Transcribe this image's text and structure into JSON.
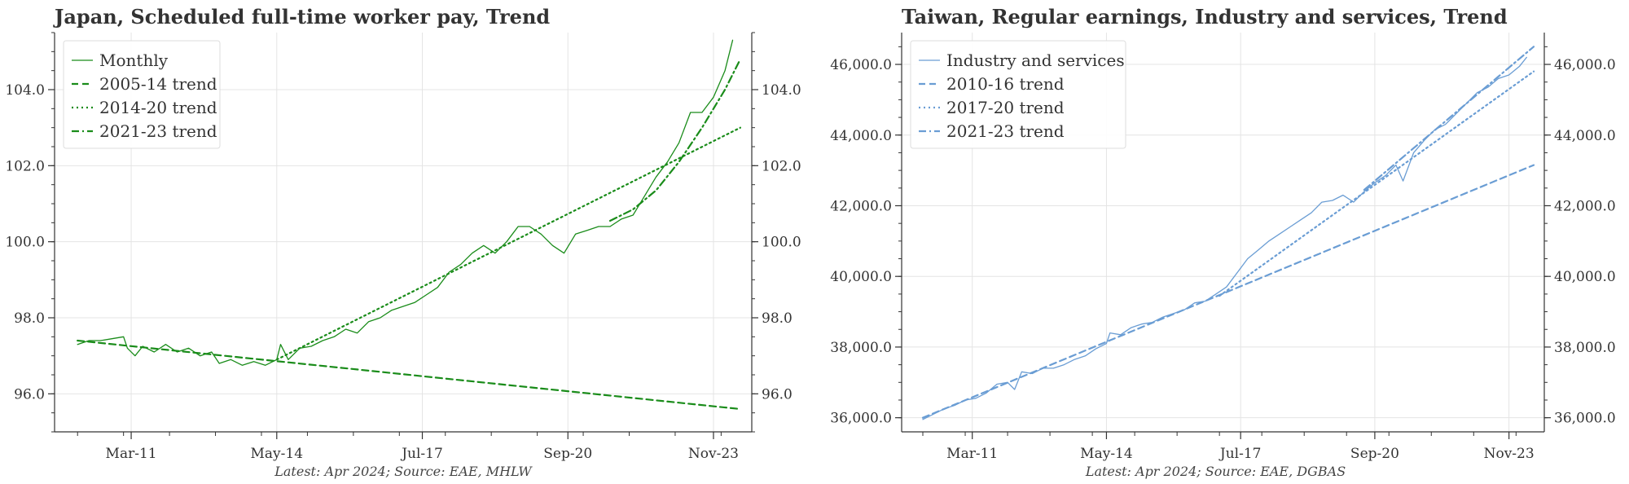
{
  "chart_data": [
    {
      "type": "line",
      "title": "Japan, Scheduled full-time worker pay, Trend",
      "caption": "Latest: Apr 2024; Source: EAE, MHLW",
      "color": "#1a8c1a",
      "xlabel": "",
      "ylabel": "",
      "x_range": [
        "2009-07",
        "2024-09"
      ],
      "ylim": [
        95.0,
        105.5
      ],
      "x_ticks": [
        "Mar-11",
        "May-14",
        "Jul-17",
        "Sep-20",
        "Nov-23"
      ],
      "y_ticks": [
        "96.0",
        "98.0",
        "100.0",
        "102.0",
        "104.0"
      ],
      "y_tick_values": [
        96,
        98,
        100,
        102,
        104
      ],
      "y_axis_both_sides": true,
      "grid": true,
      "legend_position": "top-left",
      "series": [
        {
          "name": "Monthly",
          "style": "solid",
          "points": [
            [
              "2010-01",
              97.3
            ],
            [
              "2010-04",
              97.4
            ],
            [
              "2010-07",
              97.4
            ],
            [
              "2010-10",
              97.45
            ],
            [
              "2011-01",
              97.5
            ],
            [
              "2011-02",
              97.2
            ],
            [
              "2011-04",
              97.0
            ],
            [
              "2011-06",
              97.25
            ],
            [
              "2011-09",
              97.1
            ],
            [
              "2011-12",
              97.3
            ],
            [
              "2012-03",
              97.1
            ],
            [
              "2012-06",
              97.2
            ],
            [
              "2012-09",
              97.0
            ],
            [
              "2012-12",
              97.1
            ],
            [
              "2013-02",
              96.8
            ],
            [
              "2013-05",
              96.9
            ],
            [
              "2013-08",
              96.75
            ],
            [
              "2013-11",
              96.85
            ],
            [
              "2014-02",
              96.75
            ],
            [
              "2014-05",
              96.9
            ],
            [
              "2014-06",
              97.3
            ],
            [
              "2014-08",
              96.9
            ],
            [
              "2014-11",
              97.2
            ],
            [
              "2015-02",
              97.25
            ],
            [
              "2015-05",
              97.4
            ],
            [
              "2015-08",
              97.5
            ],
            [
              "2015-11",
              97.7
            ],
            [
              "2016-02",
              97.6
            ],
            [
              "2016-05",
              97.9
            ],
            [
              "2016-08",
              98.0
            ],
            [
              "2016-11",
              98.2
            ],
            [
              "2017-02",
              98.3
            ],
            [
              "2017-05",
              98.4
            ],
            [
              "2017-08",
              98.6
            ],
            [
              "2017-11",
              98.8
            ],
            [
              "2018-02",
              99.2
            ],
            [
              "2018-05",
              99.4
            ],
            [
              "2018-08",
              99.7
            ],
            [
              "2018-11",
              99.9
            ],
            [
              "2019-02",
              99.7
            ],
            [
              "2019-05",
              100.0
            ],
            [
              "2019-08",
              100.4
            ],
            [
              "2019-11",
              100.4
            ],
            [
              "2020-02",
              100.2
            ],
            [
              "2020-05",
              99.9
            ],
            [
              "2020-08",
              99.7
            ],
            [
              "2020-11",
              100.2
            ],
            [
              "2021-02",
              100.3
            ],
            [
              "2021-05",
              100.4
            ],
            [
              "2021-08",
              100.4
            ],
            [
              "2021-11",
              100.6
            ],
            [
              "2022-02",
              100.7
            ],
            [
              "2022-05",
              101.2
            ],
            [
              "2022-08",
              101.7
            ],
            [
              "2022-11",
              102.1
            ],
            [
              "2023-02",
              102.6
            ],
            [
              "2023-05",
              103.4
            ],
            [
              "2023-08",
              103.4
            ],
            [
              "2023-11",
              103.8
            ],
            [
              "2024-02",
              104.5
            ],
            [
              "2024-04",
              105.3
            ]
          ]
        },
        {
          "name": "2005-14 trend",
          "style": "dashed",
          "points": [
            [
              "2010-01",
              97.4
            ],
            [
              "2024-06",
              95.6
            ]
          ]
        },
        {
          "name": "2014-20 trend",
          "style": "dotted",
          "points": [
            [
              "2014-05",
              96.9
            ],
            [
              "2024-06",
              103.0
            ]
          ]
        },
        {
          "name": "2021-23 trend",
          "style": "dashdot",
          "points": [
            [
              "2021-08",
              100.55
            ],
            [
              "2022-02",
              100.85
            ],
            [
              "2022-08",
              101.35
            ],
            [
              "2023-02",
              102.1
            ],
            [
              "2023-08",
              103.0
            ],
            [
              "2024-02",
              104.0
            ],
            [
              "2024-06",
              104.8
            ]
          ]
        }
      ]
    },
    {
      "type": "line",
      "title": "Taiwan, Regular earnings, Industry and services, Trend",
      "caption": "Latest: Apr 2024; Source: EAE, DGBAS",
      "color": "#6a9dd4",
      "xlabel": "",
      "ylabel": "",
      "x_range": [
        "2009-07",
        "2024-09"
      ],
      "ylim": [
        35600,
        46900
      ],
      "x_ticks": [
        "Mar-11",
        "May-14",
        "Jul-17",
        "Sep-20",
        "Nov-23"
      ],
      "y_ticks": [
        "36,000.0",
        "38,000.0",
        "40,000.0",
        "42,000.0",
        "44,000.0",
        "46,000.0"
      ],
      "y_tick_values": [
        36000,
        38000,
        40000,
        42000,
        44000,
        46000
      ],
      "y_axis_both_sides": true,
      "grid": true,
      "legend_position": "top-left",
      "series": [
        {
          "name": "Industry and services",
          "style": "solid",
          "points": [
            [
              "2010-01",
              35950
            ],
            [
              "2010-04",
              36100
            ],
            [
              "2010-07",
              36250
            ],
            [
              "2010-10",
              36350
            ],
            [
              "2011-01",
              36500
            ],
            [
              "2011-04",
              36550
            ],
            [
              "2011-07",
              36700
            ],
            [
              "2011-10",
              36950
            ],
            [
              "2012-01",
              37000
            ],
            [
              "2012-03",
              36800
            ],
            [
              "2012-05",
              37300
            ],
            [
              "2012-08",
              37250
            ],
            [
              "2012-11",
              37400
            ],
            [
              "2013-02",
              37400
            ],
            [
              "2013-05",
              37500
            ],
            [
              "2013-08",
              37650
            ],
            [
              "2013-11",
              37750
            ],
            [
              "2014-02",
              37950
            ],
            [
              "2014-05",
              38100
            ],
            [
              "2014-06",
              38400
            ],
            [
              "2014-09",
              38350
            ],
            [
              "2014-12",
              38550
            ],
            [
              "2015-03",
              38650
            ],
            [
              "2015-06",
              38700
            ],
            [
              "2015-09",
              38850
            ],
            [
              "2015-12",
              38950
            ],
            [
              "2016-03",
              39050
            ],
            [
              "2016-06",
              39250
            ],
            [
              "2016-09",
              39300
            ],
            [
              "2016-12",
              39500
            ],
            [
              "2017-03",
              39700
            ],
            [
              "2017-06",
              40100
            ],
            [
              "2017-09",
              40500
            ],
            [
              "2017-12",
              40750
            ],
            [
              "2018-03",
              41000
            ],
            [
              "2018-06",
              41200
            ],
            [
              "2018-09",
              41400
            ],
            [
              "2018-12",
              41600
            ],
            [
              "2019-03",
              41800
            ],
            [
              "2019-06",
              42100
            ],
            [
              "2019-09",
              42150
            ],
            [
              "2019-12",
              42300
            ],
            [
              "2020-03",
              42100
            ],
            [
              "2020-06",
              42400
            ],
            [
              "2020-09",
              42650
            ],
            [
              "2020-12",
              42850
            ],
            [
              "2021-03",
              43150
            ],
            [
              "2021-05",
              42700
            ],
            [
              "2021-08",
              43500
            ],
            [
              "2021-11",
              43850
            ],
            [
              "2022-02",
              44150
            ],
            [
              "2022-05",
              44300
            ],
            [
              "2022-08",
              44600
            ],
            [
              "2022-11",
              44900
            ],
            [
              "2023-02",
              45200
            ],
            [
              "2023-05",
              45350
            ],
            [
              "2023-08",
              45600
            ],
            [
              "2023-11",
              45700
            ],
            [
              "2024-02",
              45950
            ],
            [
              "2024-04",
              46200
            ]
          ]
        },
        {
          "name": "2010-16 trend",
          "style": "dashed",
          "points": [
            [
              "2010-01",
              36000
            ],
            [
              "2024-06",
              43150
            ]
          ]
        },
        {
          "name": "2017-20 trend",
          "style": "dotted",
          "points": [
            [
              "2017-01",
              39450
            ],
            [
              "2024-06",
              45800
            ]
          ]
        },
        {
          "name": "2021-23 trend",
          "style": "dashdot",
          "points": [
            [
              "2020-06",
              42450
            ],
            [
              "2024-06",
              46500
            ]
          ]
        }
      ]
    }
  ]
}
